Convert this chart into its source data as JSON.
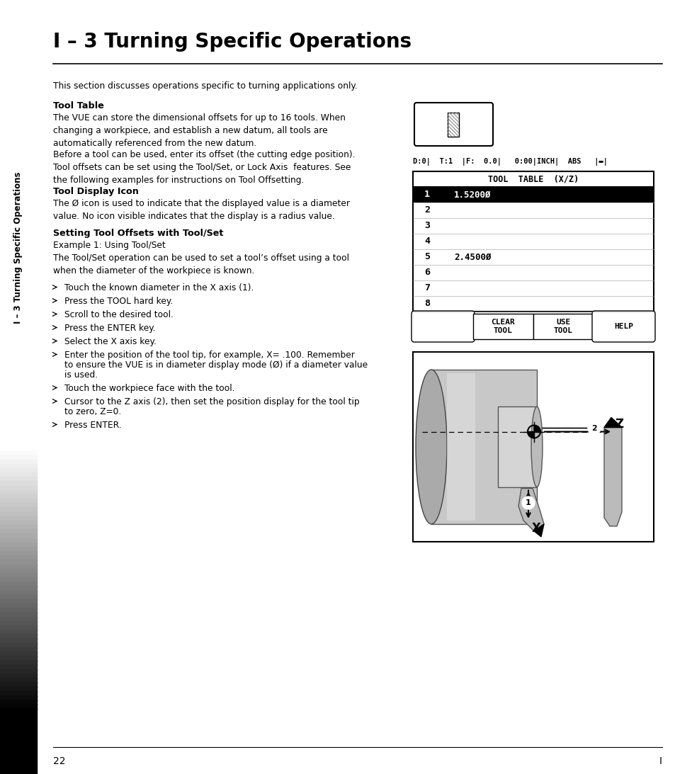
{
  "title": "I – 3 Turning Specific Operations",
  "sidebar_text": "I – 3 Turning Specific Operations",
  "page_number": "22",
  "bg_color": "#ffffff",
  "status_bar": "D:0|  T:1  |F:  0.0|   0:00|INCH|  ABS   |▬|",
  "tool_table_header": "TOOL  TABLE  (X/Z)",
  "tool_table_rows": [
    {
      "num": "1",
      "value": "1.5200Ø",
      "highlighted": true
    },
    {
      "num": "2",
      "value": "",
      "highlighted": false
    },
    {
      "num": "3",
      "value": "",
      "highlighted": false
    },
    {
      "num": "4",
      "value": "",
      "highlighted": false
    },
    {
      "num": "5",
      "value": "2.4500Ø",
      "highlighted": false
    },
    {
      "num": "6",
      "value": "",
      "highlighted": false
    },
    {
      "num": "7",
      "value": "",
      "highlighted": false
    },
    {
      "num": "8",
      "value": "",
      "highlighted": false
    }
  ],
  "softkeys": [
    "",
    "CLEAR\nTOOL",
    "USE\nTOOL",
    "HELP"
  ],
  "intro": "This section discusses operations specific to turning applications only.",
  "tool_table_heading": "Tool Table",
  "tool_table_para1": "The VUE can store the dimensional offsets for up to 16 tools. When\nchanging a workpiece, and establish a new datum, all tools are\nautomatically referenced from the new datum.",
  "tool_table_para2": "Before a tool can be used, enter its offset (the cutting edge position).\nTool offsets can be set using the Tool/Set, or Lock Axis  features. See\nthe following examples for instructions on Tool Offsetting.",
  "tool_icon_heading": "Tool Display Icon",
  "tool_icon_para": "The Ø icon is used to indicate that the displayed value is a diameter\nvalue. No icon visible indicates that the display is a radius value.",
  "setting_heading": "Setting Tool Offsets with Tool/Set",
  "example_line": "Example 1: Using Tool/Set",
  "toolset_para": "The Tool/Set operation can be used to set a tool’s offset using a tool\nwhen the diameter of the workpiece is known.",
  "bullets": [
    "Touch the known diameter in the X axis (1).",
    "Press the TOOL hard key.",
    "Scroll to the desired tool.",
    "Press the ENTER key.",
    "Select the X axis key.",
    "Enter the position of the tool tip, for example, X= .100. Remember\nto ensure the VUE is in diameter display mode (Ø) if a diameter value\nis used.",
    "Touch the workpiece face with the tool.",
    "Cursor to the Z axis (2), then set the position display for the tool tip\nto zero, Z=0.",
    "Press ENTER."
  ]
}
